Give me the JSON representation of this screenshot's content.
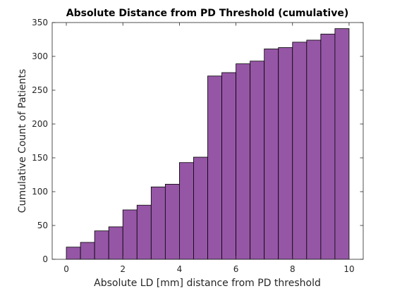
{
  "chart_data": {
    "type": "bar",
    "title": "Absolute Distance from PD Threshold (cumulative)",
    "xlabel": "Absolute LD [mm] distance from PD threshold",
    "ylabel": "Cumulative Count of Patients",
    "xlim": [
      -0.5,
      10.5
    ],
    "ylim": [
      0,
      350
    ],
    "xticks": [
      0,
      2,
      4,
      6,
      8,
      10
    ],
    "yticks": [
      0,
      50,
      100,
      150,
      200,
      250,
      300,
      350
    ],
    "bin_width": 0.5,
    "bin_edges": [
      0,
      0.5,
      1,
      1.5,
      2,
      2.5,
      3,
      3.5,
      4,
      4.5,
      5,
      5.5,
      6,
      6.5,
      7,
      7.5,
      8,
      8.5,
      9,
      9.5,
      10
    ],
    "values": [
      18,
      25,
      42,
      48,
      73,
      80,
      107,
      111,
      143,
      151,
      271,
      276,
      289,
      293,
      311,
      313,
      321,
      324,
      333,
      341
    ],
    "bar_color": "#9656a6",
    "edge_color": "#000000",
    "grid": false
  }
}
